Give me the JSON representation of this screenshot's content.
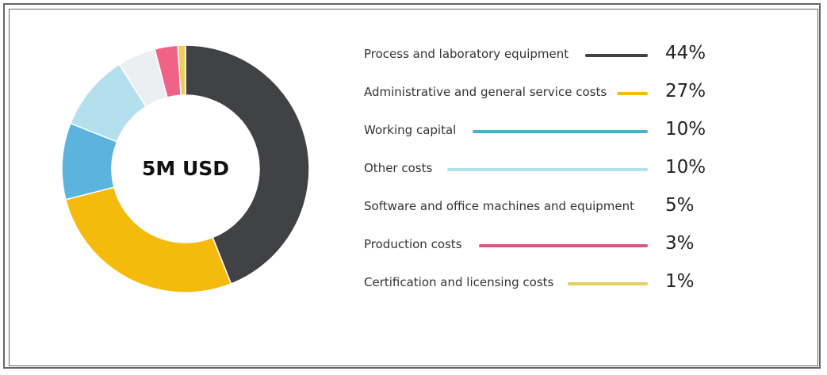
{
  "chart_data": {
    "type": "pie",
    "center_label": "5M USD",
    "legend_position": "right",
    "categories": [
      "Process and laboratory equipment",
      "Administrative and general service costs",
      "Working capital",
      "Other costs",
      "Software and office machines and equipment",
      "Production costs",
      "Certification and licensing costs"
    ],
    "values": [
      44,
      27,
      10,
      10,
      5,
      3,
      1
    ],
    "value_labels": [
      "44%",
      "27%",
      "10%",
      "10%",
      "5%",
      "3%",
      "1%"
    ],
    "colors": [
      "#414245",
      "#f4bb0c",
      "#5cb4de",
      "#b3e0ec",
      "#eceff1",
      "#f06386",
      "#e8cf5c"
    ],
    "legend_line_colors": [
      "#414245",
      "#f4bb0c",
      "#4ab0d1",
      "#b3e0ec",
      null,
      "#cf5b84",
      "#e3d060"
    ]
  }
}
